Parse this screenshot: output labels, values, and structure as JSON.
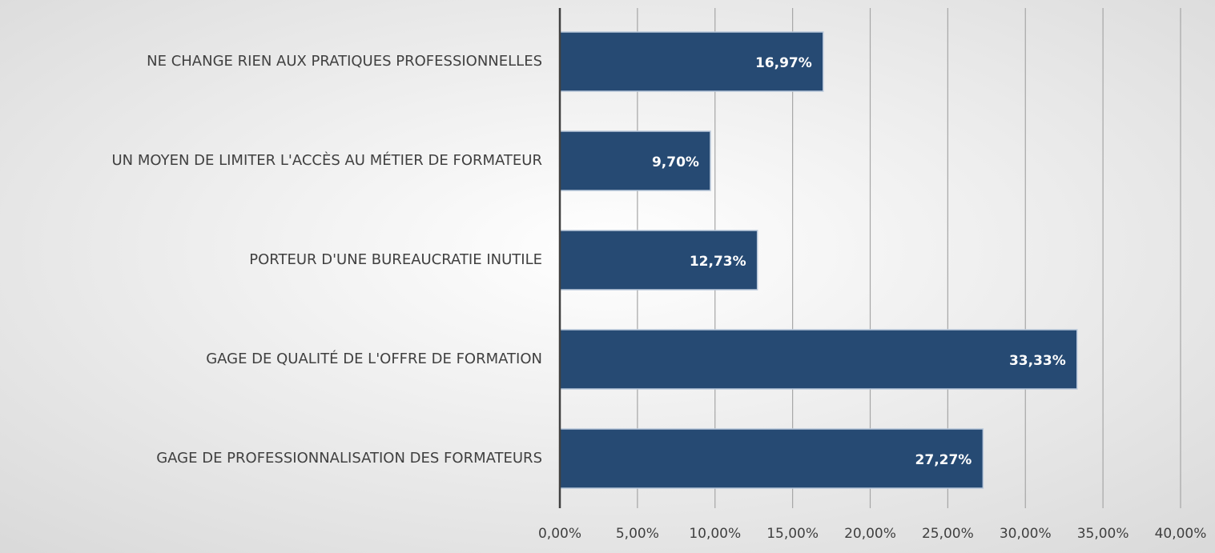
{
  "chart_data": {
    "type": "barh",
    "categories": [
      "NE CHANGE RIEN AUX PRATIQUES PROFESSIONNELLES",
      "UN MOYEN DE LIMITER L'ACCÈS AU MÉTIER DE FORMATEUR",
      "PORTEUR D'UNE BUREAUCRATIE INUTILE",
      "GAGE DE QUALITÉ DE L'OFFRE DE FORMATION",
      "GAGE DE PROFESSIONNALISATION DES FORMATEURS"
    ],
    "values": [
      16.97,
      9.7,
      12.73,
      33.33,
      27.27
    ],
    "value_labels": [
      "16,97%",
      "9,70%",
      "12,73%",
      "33,33%",
      "27,27%"
    ],
    "color": "#264a73",
    "xlim": [
      0,
      40
    ],
    "xticks": [
      {
        "value": 0,
        "label": "0,00%"
      },
      {
        "value": 5,
        "label": "5,00%"
      },
      {
        "value": 10,
        "label": "10,00%"
      },
      {
        "value": 15,
        "label": "15,00%"
      },
      {
        "value": 20,
        "label": "20,00%"
      },
      {
        "value": 25,
        "label": "25,00%"
      },
      {
        "value": 30,
        "label": "30,00%"
      },
      {
        "value": 35,
        "label": "35,00%"
      },
      {
        "value": 40,
        "label": "40,00%"
      }
    ],
    "grid": true
  }
}
